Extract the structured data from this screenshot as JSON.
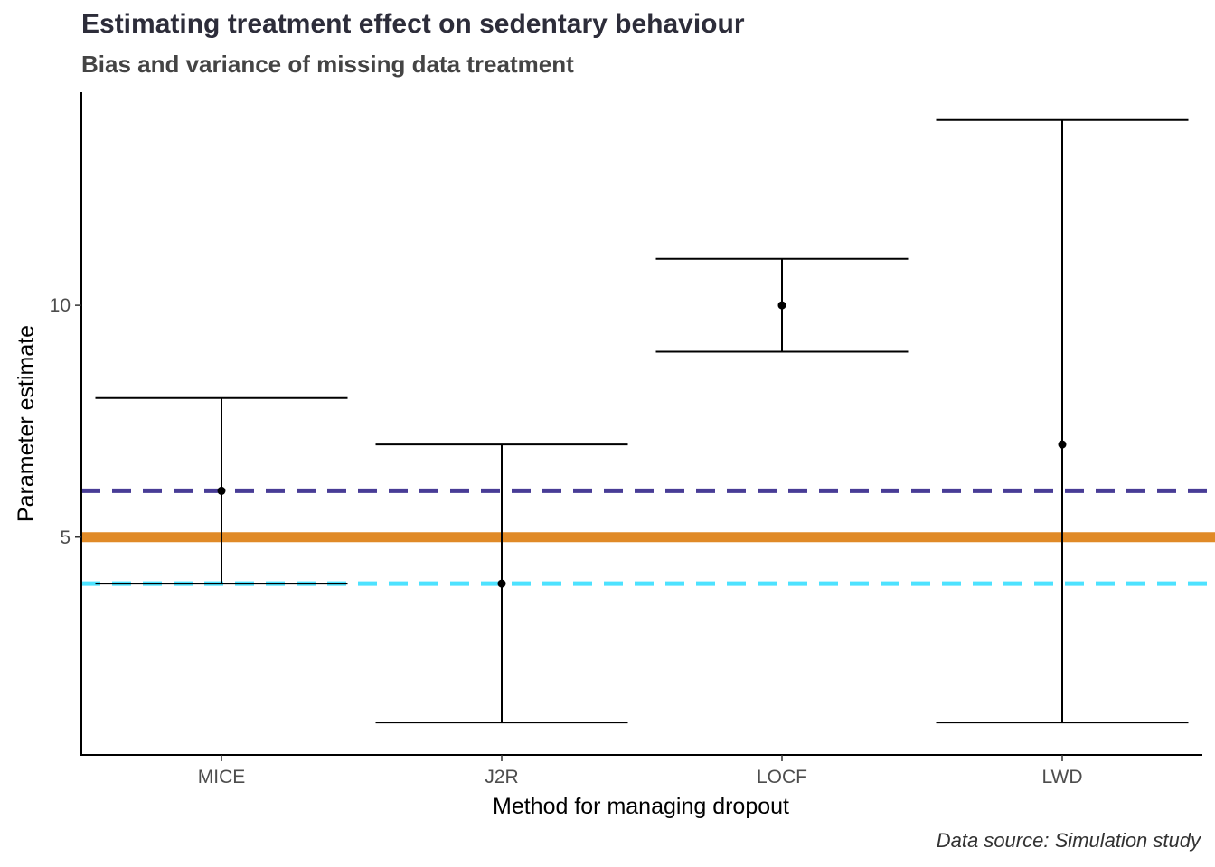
{
  "chart_data": {
    "type": "errorbar",
    "title": "Estimating treatment effect on sedentary behaviour",
    "subtitle": "Bias and variance of missing data treatment",
    "caption": "Data source: Simulation study",
    "xlabel": "Method for managing dropout",
    "ylabel": "Parameter estimate",
    "categories": [
      "MICE",
      "J2R",
      "LOCF",
      "LWD"
    ],
    "estimates": [
      6,
      4,
      10,
      7
    ],
    "lower": [
      4,
      1,
      9,
      1
    ],
    "upper": [
      8,
      7,
      11,
      14
    ],
    "ylim": [
      0.3,
      14.6
    ],
    "yticks": [
      5,
      10
    ],
    "reference_lines": [
      {
        "value": 5,
        "style": "solid",
        "color": "#E08A27"
      },
      {
        "value": 6,
        "style": "dashed",
        "color": "#483C96"
      },
      {
        "value": 4,
        "style": "dashed",
        "color": "#4DE2FF"
      }
    ],
    "point_color": "#000000",
    "grid": false
  }
}
